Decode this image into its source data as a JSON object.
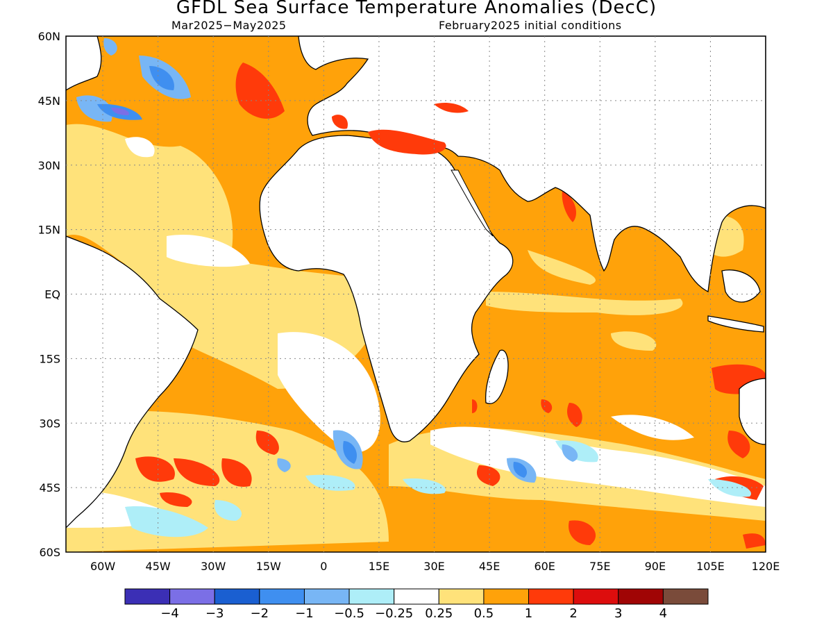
{
  "title": "GFDL Sea Surface Temperature Anomalies (DecC)",
  "subtitle_left": "Mar2025−May2025",
  "subtitle_right": "February2025 initial conditions",
  "map": {
    "lon_range": [
      -70,
      120
    ],
    "lat_range": [
      -60,
      60
    ],
    "lat_ticks": [
      "60N",
      "45N",
      "30N",
      "15N",
      "EQ",
      "15S",
      "30S",
      "45S",
      "60S"
    ],
    "lon_ticks": [
      "60W",
      "45W",
      "30W",
      "15W",
      "0",
      "15E",
      "30E",
      "45E",
      "60E",
      "75E",
      "90E",
      "105E",
      "120E"
    ],
    "grid": true
  },
  "colorbar": {
    "colors": [
      "#3b2fb5",
      "#7b6fe6",
      "#1a5fd1",
      "#3f8ff0",
      "#78b6f5",
      "#aeeef8",
      "#ffffff",
      "#ffe27a",
      "#ffa20a",
      "#ff3a0a",
      "#dd0d0d",
      "#a00505",
      "#7a4b3a"
    ],
    "labels": [
      "−4",
      "−3",
      "−2",
      "−1",
      "−0.5",
      "−0.25",
      "0.25",
      "0.5",
      "1",
      "2",
      "3",
      "4"
    ]
  }
}
